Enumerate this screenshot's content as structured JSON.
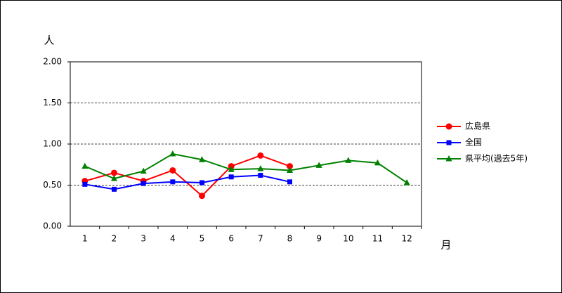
{
  "chart_data": {
    "type": "line",
    "y_label": "人",
    "x_label": "月",
    "categories": [
      "1",
      "2",
      "3",
      "4",
      "5",
      "6",
      "7",
      "8",
      "9",
      "10",
      "11",
      "12"
    ],
    "series": [
      {
        "name": "広島県",
        "color": "#ff0000",
        "marker": "circle",
        "values": [
          0.55,
          0.65,
          0.55,
          0.68,
          0.37,
          0.73,
          0.86,
          0.73,
          null,
          null,
          null,
          null
        ]
      },
      {
        "name": "全国",
        "color": "#0000ff",
        "marker": "square",
        "values": [
          0.51,
          0.45,
          0.52,
          0.54,
          0.53,
          0.6,
          0.62,
          0.54,
          null,
          null,
          null,
          null
        ]
      },
      {
        "name": "県平均(過去5年)",
        "color": "#008000",
        "marker": "triangle",
        "values": [
          0.73,
          0.58,
          0.67,
          0.88,
          0.81,
          0.69,
          0.7,
          0.68,
          0.74,
          0.8,
          0.77,
          0.53
        ]
      }
    ],
    "ylim": [
      0,
      2
    ],
    "yticks": [
      {
        "value": 0,
        "label": "0.00"
      },
      {
        "value": 0.5,
        "label": "0.50"
      },
      {
        "value": 1,
        "label": "1.00"
      },
      {
        "value": 1.5,
        "label": "1.50"
      },
      {
        "value": 2,
        "label": "2.00"
      }
    ],
    "grid": true
  }
}
